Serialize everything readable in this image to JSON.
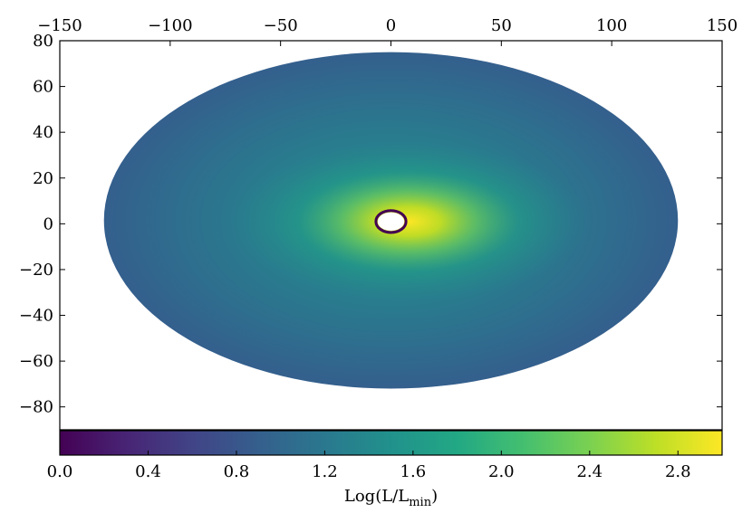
{
  "chart_data": {
    "type": "heatmap",
    "projection": "mollweide",
    "title": "",
    "x_axis": {
      "position": "top",
      "range": [
        -150,
        150
      ],
      "ticks": [
        -150,
        -100,
        -50,
        0,
        50,
        100,
        150
      ],
      "tick_labels": [
        "−150",
        "−100",
        "−50",
        "0",
        "50",
        "100",
        "150"
      ]
    },
    "y_axis": {
      "position": "left",
      "range": [
        -90,
        80
      ],
      "ticks": [
        80,
        60,
        40,
        20,
        0,
        -20,
        -40,
        -60,
        -80
      ],
      "tick_labels": [
        "80",
        "60",
        "40",
        "20",
        "0",
        "−20",
        "−40",
        "−60",
        "−80"
      ]
    },
    "map": {
      "extent_x": [
        -130,
        130
      ],
      "extent_y": [
        -72,
        75
      ],
      "hole_center": [
        0,
        1
      ],
      "hole_radii": [
        6,
        4
      ],
      "peak": [
        8,
        1
      ],
      "value_range": [
        0.0,
        3.0
      ]
    },
    "colorbar": {
      "colormap": "viridis",
      "orientation": "horizontal",
      "range": [
        0.0,
        3.0
      ],
      "ticks": [
        0.0,
        0.4,
        0.8,
        1.2,
        1.6,
        2.0,
        2.4,
        2.8
      ],
      "tick_labels": [
        "0.0",
        "0.4",
        "0.8",
        "1.2",
        "1.6",
        "2.0",
        "2.4",
        "2.8"
      ],
      "label": "Log(L/L",
      "label_sub": "min",
      "label_close": ")"
    },
    "colors": {
      "outer": "#345f8d",
      "mid": "#21918c",
      "peak": "#fde725",
      "hole_edge": "#440154"
    }
  }
}
